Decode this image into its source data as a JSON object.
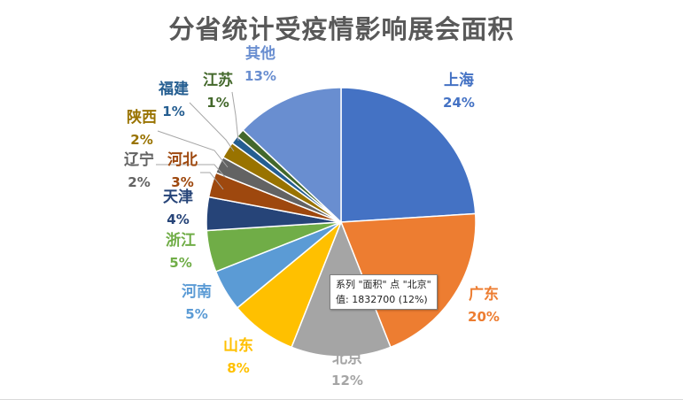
{
  "chart_data": {
    "type": "pie",
    "title": "分省统计受疫情影响展会面积",
    "series_name": "面积",
    "categories": [
      "上海",
      "广东",
      "北京",
      "山东",
      "河南",
      "浙江",
      "天津",
      "河北",
      "辽宁",
      "陕西",
      "福建",
      "江苏",
      "其他"
    ],
    "values": [
      24,
      20,
      12,
      8,
      5,
      5,
      4,
      3,
      2,
      2,
      1,
      1,
      13
    ],
    "labels_pct": [
      "24%",
      "20%",
      "12%",
      "8%",
      "5%",
      "5%",
      "4%",
      "3%",
      "2%",
      "2%",
      "1%",
      "1%",
      "13%"
    ],
    "colors": [
      "#4472C4",
      "#ED7D31",
      "#A5A5A5",
      "#FFC000",
      "#5B9BD5",
      "#70AD47",
      "#264478",
      "#9E480E",
      "#636363",
      "#997300",
      "#255E91",
      "#43682B",
      "#698ED0"
    ],
    "start_angle_deg": 0,
    "direction": "clockwise"
  },
  "tooltip": {
    "line1": "系列 \"面积\" 点 \"北京\"",
    "line2": "值: 1832700 (12%)"
  }
}
